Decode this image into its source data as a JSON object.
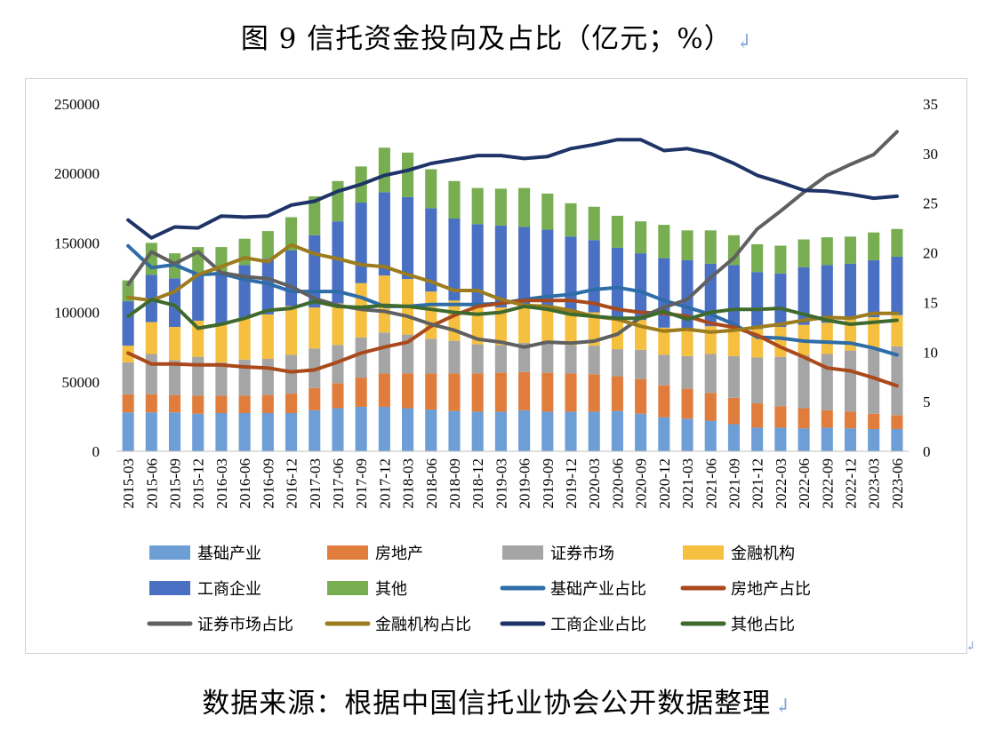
{
  "title": "图 9  信托资金投向及占比（亿元；%）",
  "source": "数据来源：根据中国信托业协会公开数据整理",
  "chart_data": {
    "type": "bar",
    "stacked": true,
    "secondary_type": "line",
    "categories": [
      "2015-03",
      "2015-06",
      "2015-09",
      "2015-12",
      "2016-03",
      "2016-06",
      "2016-09",
      "2016-12",
      "2017-03",
      "2017-06",
      "2017-09",
      "2017-12",
      "2018-03",
      "2018-06",
      "2018-09",
      "2018-12",
      "2019-03",
      "2019-06",
      "2019-09",
      "2019-12",
      "2020-03",
      "2020-06",
      "2020-09",
      "2020-12",
      "2021-03",
      "2021-06",
      "2021-09",
      "2021-12",
      "2022-03",
      "2022-06",
      "2022-09",
      "2022-12",
      "2023-03",
      "2023-06"
    ],
    "ylim": [
      0,
      250000
    ],
    "yticks": [
      0,
      50000,
      100000,
      150000,
      200000,
      250000
    ],
    "y2lim": [
      0,
      35
    ],
    "y2ticks": [
      0,
      5,
      10,
      15,
      20,
      25,
      30,
      35
    ],
    "legend_position": "bottom",
    "series": [
      {
        "name": "基础产业",
        "axis": "left",
        "color": "#6d9ed6",
        "values": [
          28000,
          28000,
          28000,
          27000,
          27500,
          27500,
          27500,
          27500,
          29500,
          31000,
          32000,
          32000,
          31000,
          30000,
          29000,
          28500,
          28500,
          29500,
          28500,
          28500,
          28500,
          29000,
          27000,
          24500,
          23500,
          22000,
          19500,
          17000,
          17000,
          16500,
          17000,
          16500,
          16000,
          16000
        ]
      },
      {
        "name": "房地产",
        "axis": "left",
        "color": "#e07d3c",
        "values": [
          13000,
          13000,
          12500,
          13000,
          12500,
          12500,
          13000,
          14000,
          16000,
          18000,
          21000,
          24000,
          25000,
          26000,
          27000,
          27500,
          28000,
          27500,
          28000,
          27500,
          27000,
          25000,
          25000,
          23000,
          21500,
          20000,
          19000,
          17500,
          15500,
          14500,
          12500,
          12000,
          11000,
          10000
        ]
      },
      {
        "name": "证券市场",
        "axis": "left",
        "color": "#a5a5a5",
        "values": [
          23000,
          29000,
          25000,
          28000,
          24000,
          26000,
          26000,
          28000,
          28500,
          27500,
          29000,
          29500,
          28000,
          25000,
          23500,
          21000,
          20000,
          21000,
          21500,
          20500,
          20500,
          19500,
          21000,
          22000,
          23500,
          28000,
          30000,
          33000,
          35500,
          38000,
          40500,
          44000,
          46500,
          49500
        ]
      },
      {
        "name": "金融机构",
        "axis": "left",
        "color": "#f5c040",
        "values": [
          12000,
          23000,
          24000,
          26000,
          28000,
          30000,
          32000,
          35000,
          29500,
          30000,
          39000,
          41000,
          40000,
          34000,
          29000,
          28500,
          27000,
          25500,
          25500,
          24000,
          24000,
          22000,
          21500,
          19500,
          20000,
          20000,
          20500,
          20500,
          21500,
          22000,
          22500,
          22500,
          23000,
          22500
        ]
      },
      {
        "name": "工商企业",
        "axis": "left",
        "color": "#4a70c4",
        "values": [
          32000,
          34000,
          35000,
          35000,
          35000,
          38000,
          40000,
          40000,
          52000,
          59000,
          58000,
          60000,
          59000,
          60000,
          59000,
          58000,
          59000,
          58000,
          56000,
          54000,
          52000,
          51000,
          48000,
          50000,
          49000,
          45000,
          45000,
          41000,
          38500,
          41500,
          41500,
          40000,
          41000,
          42000
        ]
      },
      {
        "name": "其他",
        "axis": "left",
        "color": "#78ad52",
        "values": [
          15000,
          23000,
          18000,
          18000,
          20000,
          19000,
          20000,
          24000,
          28000,
          29000,
          26000,
          32000,
          32000,
          28000,
          27000,
          26000,
          26500,
          28000,
          26000,
          24000,
          24000,
          23000,
          23000,
          24000,
          21500,
          24000,
          21500,
          20000,
          20000,
          20000,
          20000,
          19500,
          20000,
          20000
        ]
      },
      {
        "name": "基础产业占比",
        "axis": "right",
        "color": "#2e6da8",
        "values": [
          20.7,
          18.5,
          18.8,
          17.8,
          17.9,
          17.3,
          16.9,
          16.1,
          16.1,
          16.1,
          15.5,
          14.6,
          14.6,
          14.8,
          14.8,
          14.8,
          14.9,
          15.3,
          15.6,
          15.8,
          16.3,
          16.5,
          16.1,
          15.2,
          14.5,
          13.8,
          12.8,
          11.5,
          11.4,
          11.1,
          11.0,
          10.9,
          10.4,
          9.7
        ]
      },
      {
        "name": "房地产占比",
        "axis": "right",
        "color": "#a9491c",
        "values": [
          9.9,
          8.8,
          8.8,
          8.7,
          8.7,
          8.5,
          8.4,
          8.0,
          8.2,
          9.0,
          9.9,
          10.5,
          11.0,
          12.6,
          13.7,
          14.6,
          14.9,
          15.2,
          15.2,
          15.2,
          14.9,
          14.3,
          14.0,
          13.9,
          13.6,
          12.9,
          12.5,
          11.7,
          10.5,
          9.5,
          8.4,
          8.1,
          7.4,
          6.6
        ]
      },
      {
        "name": "证券市场占比",
        "axis": "right",
        "color": "#606060",
        "values": [
          16.8,
          20.1,
          18.9,
          20.1,
          18.0,
          17.6,
          17.4,
          16.6,
          15.4,
          14.7,
          14.3,
          14.1,
          13.6,
          12.8,
          12.2,
          11.3,
          11.0,
          10.5,
          11.0,
          10.9,
          11.1,
          11.8,
          13.5,
          14.5,
          15.3,
          17.5,
          19.5,
          22.4,
          24.2,
          26.1,
          27.8,
          28.9,
          29.9,
          32.2
        ]
      },
      {
        "name": "金融机构占比",
        "axis": "right",
        "color": "#9c7c1e",
        "values": [
          15.5,
          15.2,
          16.1,
          17.8,
          18.6,
          19.5,
          19.1,
          20.8,
          19.9,
          19.4,
          18.8,
          18.6,
          17.8,
          17.1,
          16.2,
          16.2,
          15.3,
          14.7,
          14.6,
          14.2,
          13.6,
          13.3,
          12.6,
          12.1,
          12.3,
          12.0,
          12.2,
          12.5,
          12.8,
          13.2,
          13.5,
          13.4,
          13.9,
          13.9
        ]
      },
      {
        "name": "工商企业占比",
        "axis": "right",
        "color": "#1e3468",
        "values": [
          23.3,
          21.5,
          22.6,
          22.5,
          23.7,
          23.6,
          23.7,
          24.8,
          25.2,
          26.2,
          26.9,
          27.8,
          28.3,
          29.0,
          29.4,
          29.8,
          29.8,
          29.5,
          29.7,
          30.5,
          30.9,
          31.4,
          31.4,
          30.3,
          30.5,
          30.0,
          29.0,
          27.8,
          27.1,
          26.3,
          26.2,
          25.9,
          25.5,
          25.7
        ]
      },
      {
        "name": "其他占比",
        "axis": "right",
        "color": "#3f6a2e",
        "values": [
          13.6,
          15.3,
          14.7,
          12.4,
          12.8,
          13.4,
          14.2,
          14.4,
          15.1,
          14.6,
          14.5,
          14.7,
          14.6,
          14.3,
          14.0,
          13.8,
          14.0,
          14.6,
          14.3,
          13.8,
          13.6,
          13.4,
          13.4,
          14.1,
          13.3,
          14.0,
          14.3,
          14.3,
          14.4,
          13.8,
          13.2,
          12.8,
          13.0,
          13.2
        ]
      }
    ]
  }
}
